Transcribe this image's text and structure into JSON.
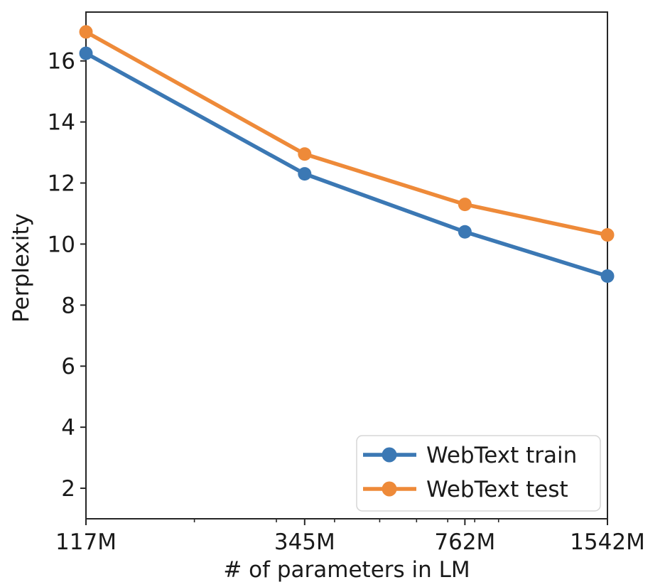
{
  "figure": {
    "background": "#ffffff",
    "spine_color": "#262626",
    "tick_color": "#262626",
    "text_color": "#1a1a1a"
  },
  "chart_data": {
    "type": "line",
    "title": "",
    "xlabel": "# of parameters in LM",
    "ylabel": "Perplexity",
    "x_scale": "log",
    "grid": false,
    "legend_position": "lower-right",
    "xlim": [
      117,
      1542
    ],
    "ylim": [
      1.0,
      17.6
    ],
    "x": [
      117,
      345,
      762,
      1542
    ],
    "x_tick_labels": [
      "117M",
      "345M",
      "762M",
      "1542M"
    ],
    "x_minor_ticks": [
      200,
      300,
      400,
      500,
      600,
      700,
      800,
      900
    ],
    "y_ticks": [
      2,
      4,
      6,
      8,
      10,
      12,
      14,
      16
    ],
    "y_tick_labels": [
      "2",
      "4",
      "6",
      "8",
      "10",
      "12",
      "14",
      "16"
    ],
    "series": [
      {
        "name": "WebText train",
        "color": "#3b78b4",
        "marker": "circle",
        "values": [
          16.25,
          12.3,
          10.4,
          8.95
        ]
      },
      {
        "name": "WebText test",
        "color": "#ee8a39",
        "marker": "circle",
        "values": [
          16.95,
          12.95,
          11.3,
          10.3
        ]
      }
    ],
    "legend": {
      "items": [
        "WebText train",
        "WebText test"
      ],
      "border_color": "#d5d5d5",
      "fill": "#ffffff"
    }
  }
}
